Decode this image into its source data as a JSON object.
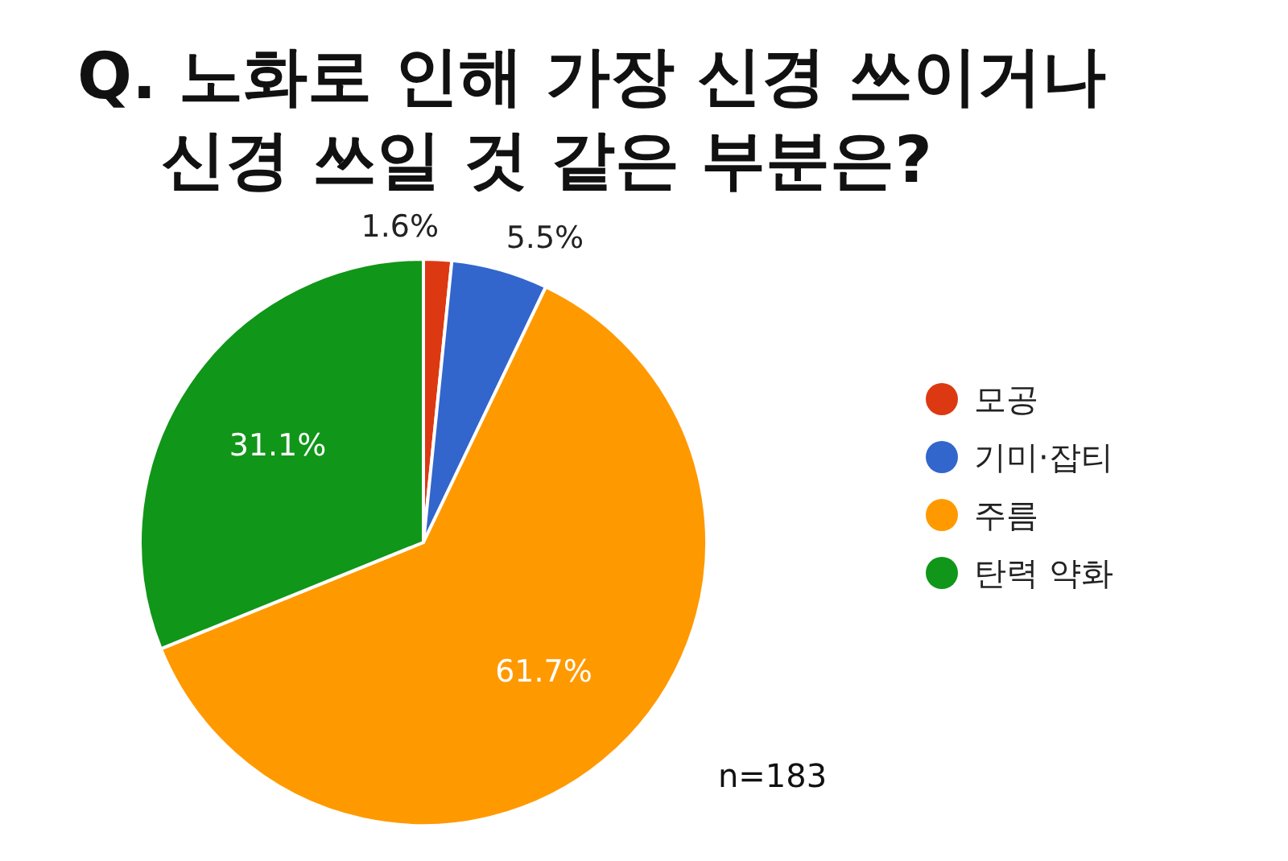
{
  "chart_data": {
    "type": "pie",
    "title": "Q. 노화로 인해 가장 신경 쓰이거나 신경 쓰일 것 같은 부분은?",
    "categories": [
      "모공",
      "기미·잡티",
      "주름",
      "탄력 약화"
    ],
    "values": [
      1.6,
      5.5,
      61.7,
      31.1
    ],
    "colors": [
      "#dc3912",
      "#3366cc",
      "#ff9900",
      "#109618"
    ],
    "value_labels": [
      "1.6%",
      "5.5%",
      "61.7%",
      "31.1%"
    ],
    "legend": "right",
    "annotations": [
      "n=183"
    ]
  }
}
